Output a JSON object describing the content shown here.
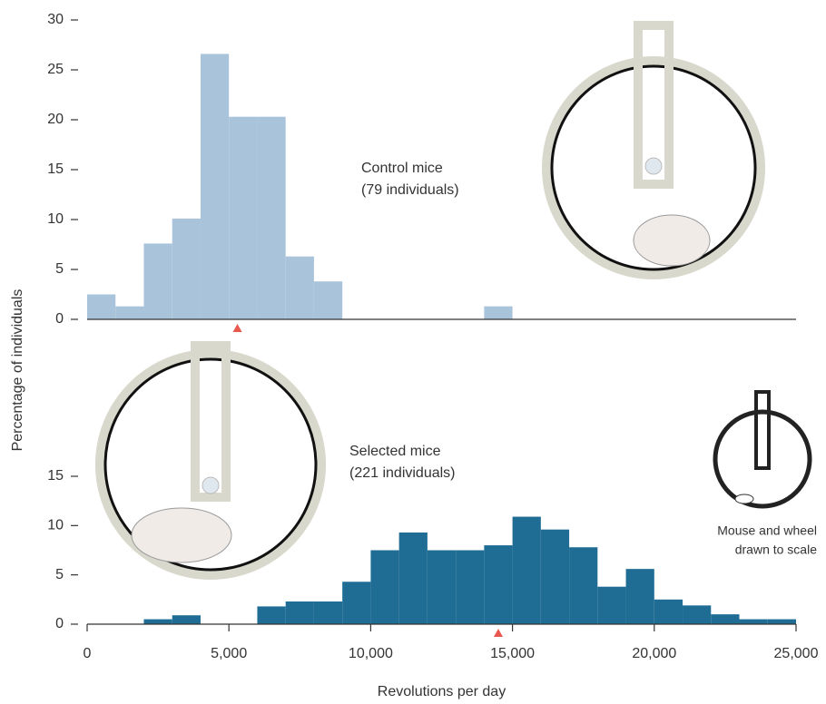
{
  "chart_data": [
    {
      "type": "histogram",
      "ylabel": "Percentage of individuals",
      "annotations": [
        "Control mice",
        "(79 individuals)"
      ],
      "bins": [
        0,
        1000,
        2000,
        3000,
        4000,
        5000,
        6000,
        7000,
        8000,
        9000,
        10000,
        11000,
        12000,
        13000,
        14000,
        15000,
        16000,
        17000,
        18000,
        19000,
        20000,
        21000,
        22000,
        23000,
        24000,
        25000
      ],
      "values": [
        2.5,
        1.3,
        7.6,
        10.1,
        26.6,
        20.3,
        20.3,
        6.3,
        3.8,
        0,
        0,
        0,
        0,
        0,
        1.3,
        0,
        0,
        0,
        0,
        0,
        0,
        0,
        0,
        0,
        0
      ],
      "color": "#a9c4da",
      "mean": 5300,
      "mean_color": "#e8584f",
      "xlim": [
        0,
        25000
      ],
      "ylim": [
        0,
        30
      ],
      "yticks": [
        0,
        5,
        10,
        15,
        20,
        25,
        30
      ]
    },
    {
      "type": "histogram",
      "xlabel": "Revolutions per day",
      "annotations": [
        "Selected mice",
        "(221 individuals)",
        "Mouse and wheel",
        "drawn to scale"
      ],
      "bins": [
        0,
        1000,
        2000,
        3000,
        4000,
        5000,
        6000,
        7000,
        8000,
        9000,
        10000,
        11000,
        12000,
        13000,
        14000,
        15000,
        16000,
        17000,
        18000,
        19000,
        20000,
        21000,
        22000,
        23000,
        24000,
        25000
      ],
      "values": [
        0,
        0,
        0.5,
        0.9,
        0,
        0,
        1.8,
        2.3,
        2.3,
        4.3,
        7.5,
        9.3,
        7.5,
        7.5,
        8.0,
        10.9,
        9.6,
        7.8,
        3.8,
        5.6,
        2.5,
        1.9,
        1.0,
        0.5,
        0.5
      ],
      "color": "#1f6d95",
      "mean": 14500,
      "mean_color": "#e8584f",
      "xlim": [
        0,
        25000
      ],
      "ylim": [
        0,
        30
      ],
      "yticks": [
        0,
        5,
        10,
        15
      ],
      "xticks": [
        0,
        {
          "value": 5000,
          "label": "5,000"
        },
        {
          "value": 10000,
          "label": "10,000"
        },
        {
          "value": 15000,
          "label": "15,000"
        },
        {
          "value": 20000,
          "label": "20,000"
        },
        {
          "value": 25000,
          "label": "25,000"
        }
      ]
    }
  ]
}
